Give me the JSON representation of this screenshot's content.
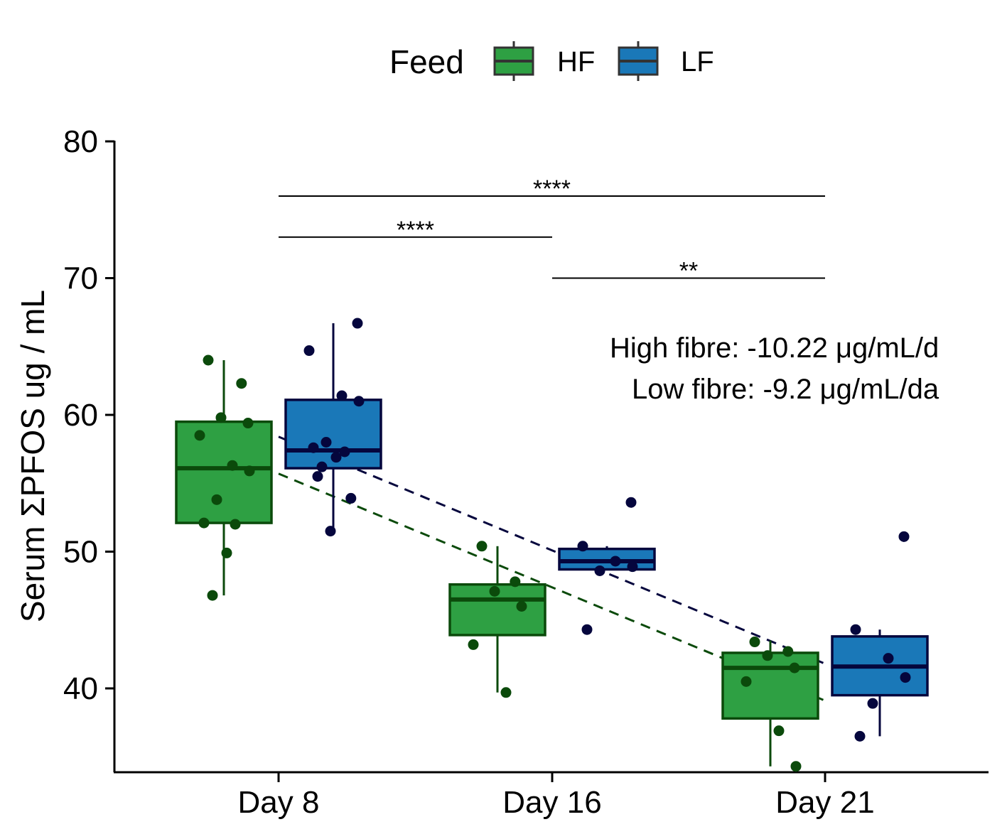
{
  "chart_data": {
    "type": "box",
    "title": "",
    "xlabel": "",
    "ylabel": "Serum ΣPFOS ug / mL",
    "ylim": [
      34,
      80
    ],
    "yticks": [
      40,
      50,
      60,
      70,
      80
    ],
    "categories": [
      "Day 8",
      "Day 16",
      "Day 21"
    ],
    "legend": {
      "title": "Feed",
      "position": "top",
      "entries": [
        "HF",
        "LF"
      ]
    },
    "grid": false,
    "series": [
      {
        "name": "HF",
        "color": "#2ea043",
        "edge_color": "#0b4a0b",
        "boxes": [
          {
            "category": "Day 8",
            "whisker_low": 46.8,
            "q1": 52.1,
            "median": 56.1,
            "q3": 59.5,
            "whisker_high": 64.0
          },
          {
            "category": "Day 16",
            "whisker_low": 39.7,
            "q1": 43.9,
            "median": 46.5,
            "q3": 47.6,
            "whisker_high": 50.4
          },
          {
            "category": "Day 21",
            "whisker_low": 34.3,
            "q1": 37.8,
            "median": 41.5,
            "q3": 42.6,
            "whisker_high": 43.5
          }
        ],
        "points": [
          {
            "category": "Day 8",
            "values": [
              64.0,
              62.3,
              59.8,
              59.4,
              58.5,
              56.3,
              55.9,
              53.8,
              52.1,
              52.0,
              49.9,
              46.8
            ]
          },
          {
            "category": "Day 16",
            "values": [
              50.4,
              47.8,
              47.1,
              46.0,
              43.2,
              39.7
            ]
          },
          {
            "category": "Day 21",
            "values": [
              43.4,
              42.7,
              42.4,
              41.5,
              40.5,
              36.9,
              34.3
            ]
          }
        ],
        "trend": {
          "day8": 55.7,
          "day21": 39.1
        }
      },
      {
        "name": "LF",
        "color": "#1a78b8",
        "edge_color": "#05063d",
        "boxes": [
          {
            "category": "Day 8",
            "whisker_low": 51.5,
            "q1": 56.1,
            "median": 57.4,
            "q3": 61.1,
            "whisker_high": 66.7
          },
          {
            "category": "Day 16",
            "whisker_low": 48.7,
            "q1": 48.7,
            "median": 49.3,
            "q3": 50.2,
            "whisker_high": 50.4
          },
          {
            "category": "Day 21",
            "whisker_low": 36.5,
            "q1": 39.5,
            "median": 41.6,
            "q3": 43.8,
            "whisker_high": 44.3
          }
        ],
        "points": [
          {
            "category": "Day 8",
            "values": [
              66.7,
              64.7,
              61.4,
              61.0,
              58.0,
              57.6,
              57.3,
              56.9,
              56.2,
              55.5,
              53.9,
              51.5
            ]
          },
          {
            "category": "Day 16",
            "values": [
              53.6,
              50.4,
              49.3,
              48.9,
              48.6,
              44.3
            ]
          },
          {
            "category": "Day 21",
            "values": [
              51.1,
              44.3,
              42.2,
              40.8,
              38.9,
              36.5
            ]
          }
        ],
        "trend": {
          "day8": 58.4,
          "day21": 41.8
        }
      }
    ],
    "significance": [
      {
        "from": "Day 8",
        "to": "Day 21",
        "y": 76,
        "label": "****"
      },
      {
        "from": "Day 8",
        "to": "Day 16",
        "y": 73,
        "label": "****"
      },
      {
        "from": "Day 16",
        "to": "Day 21",
        "y": 70,
        "label": "**"
      }
    ],
    "annotations": [
      "High fibre:  -10.22  μg/mL/d",
      "Low fibre:  -9.2  μg/mL/da"
    ]
  }
}
